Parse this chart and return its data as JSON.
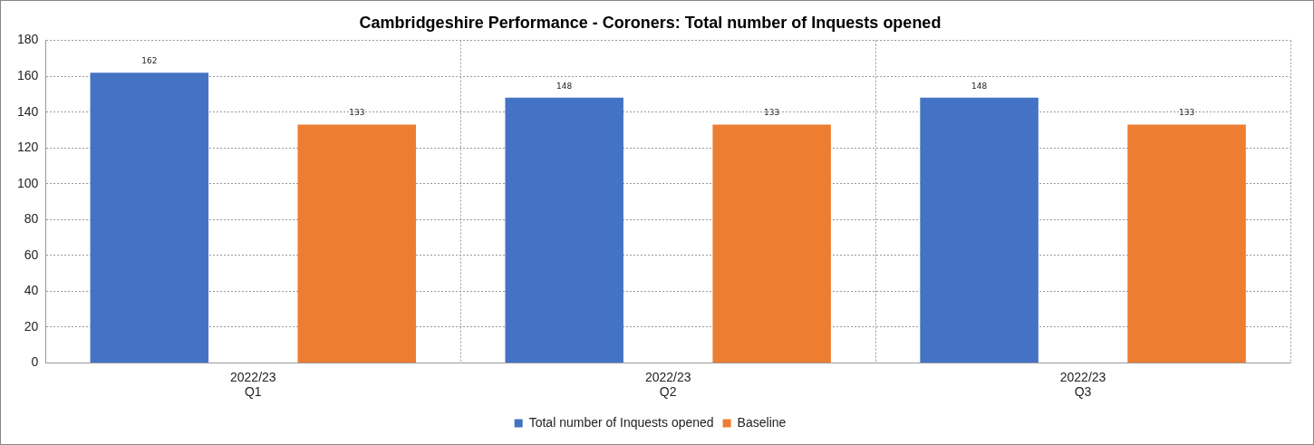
{
  "chart_data": {
    "type": "bar",
    "title": "Cambridgeshire Performance - Coroners: Total number of Inquests opened",
    "categories": [
      "2022/23\nQ1",
      "2022/23\nQ2",
      "2022/23\nQ3"
    ],
    "series": [
      {
        "name": "Total number of Inquests opened",
        "color": "#4472c4",
        "values": [
          162,
          148,
          148
        ]
      },
      {
        "name": "Baseline",
        "color": "#ed7d31",
        "values": [
          133,
          133,
          133
        ]
      }
    ],
    "ylim": [
      0,
      180
    ],
    "yticks": [
      0,
      20,
      40,
      60,
      80,
      100,
      120,
      140,
      160,
      180
    ],
    "grid": true,
    "legend": "bottom",
    "data_labels": true
  }
}
